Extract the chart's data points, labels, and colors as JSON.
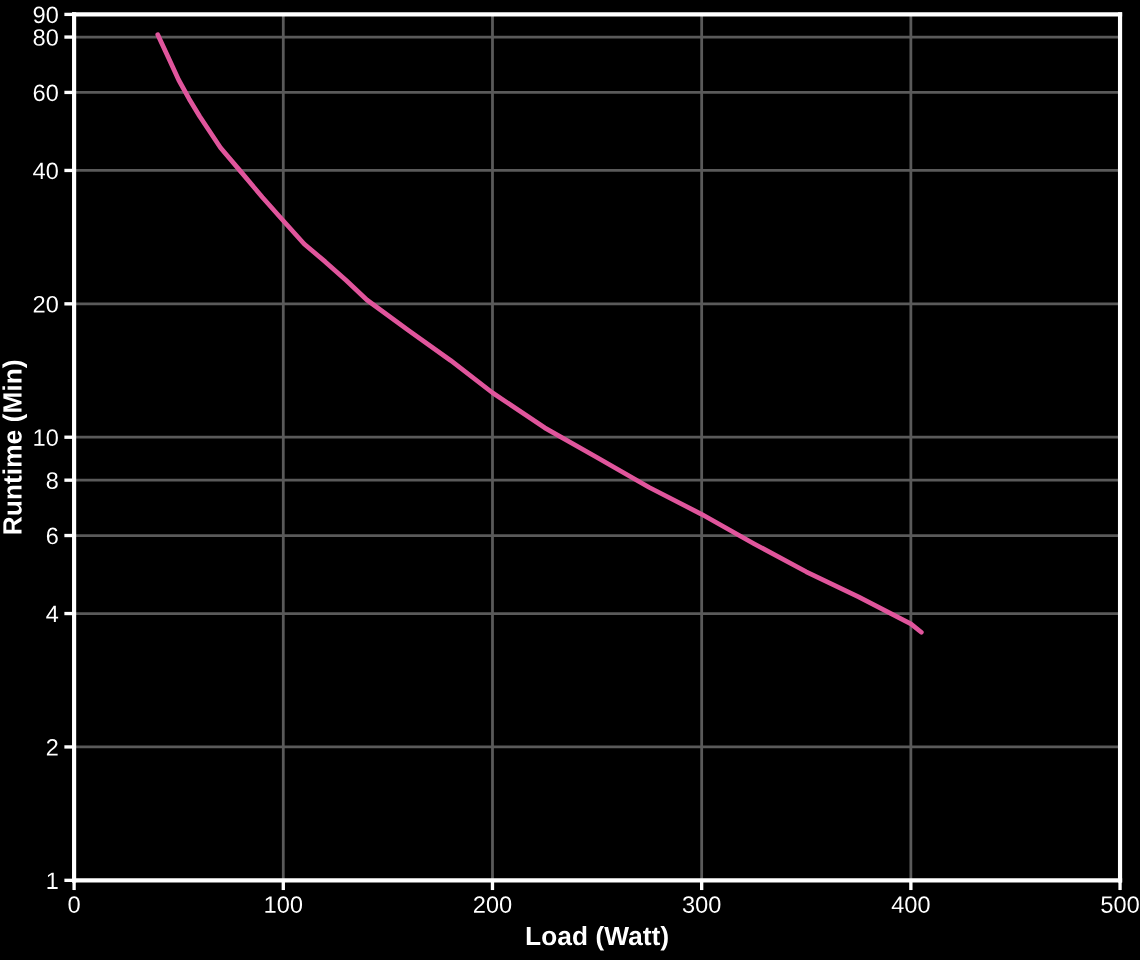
{
  "chart_data": {
    "type": "line",
    "xlabel": "Load (Watt)",
    "ylabel": "Runtime (Min)",
    "log": "y",
    "grid": true,
    "marker": "none",
    "line_style": "solid",
    "xlim": [
      0,
      500
    ],
    "xticks": [
      0,
      100,
      200,
      300,
      400,
      500
    ],
    "ylim": [
      1,
      90
    ],
    "yticks": [
      1,
      2,
      4,
      6,
      8,
      10,
      20,
      40,
      60,
      80,
      90
    ],
    "series": [
      {
        "color": "#e0559c",
        "x": [
          40,
          45,
          50,
          55,
          60,
          70,
          80,
          90,
          100,
          110,
          120,
          130,
          140,
          160,
          180,
          200,
          225,
          250,
          275,
          300,
          325,
          350,
          375,
          400,
          405
        ],
        "values": [
          81,
          72,
          64,
          58,
          53,
          45,
          39.6,
          34.8,
          30.8,
          27.3,
          24.9,
          22.6,
          20.4,
          17.4,
          14.9,
          12.6,
          10.5,
          9.0,
          7.7,
          6.7,
          5.75,
          4.97,
          4.36,
          3.79,
          3.63
        ]
      }
    ]
  }
}
